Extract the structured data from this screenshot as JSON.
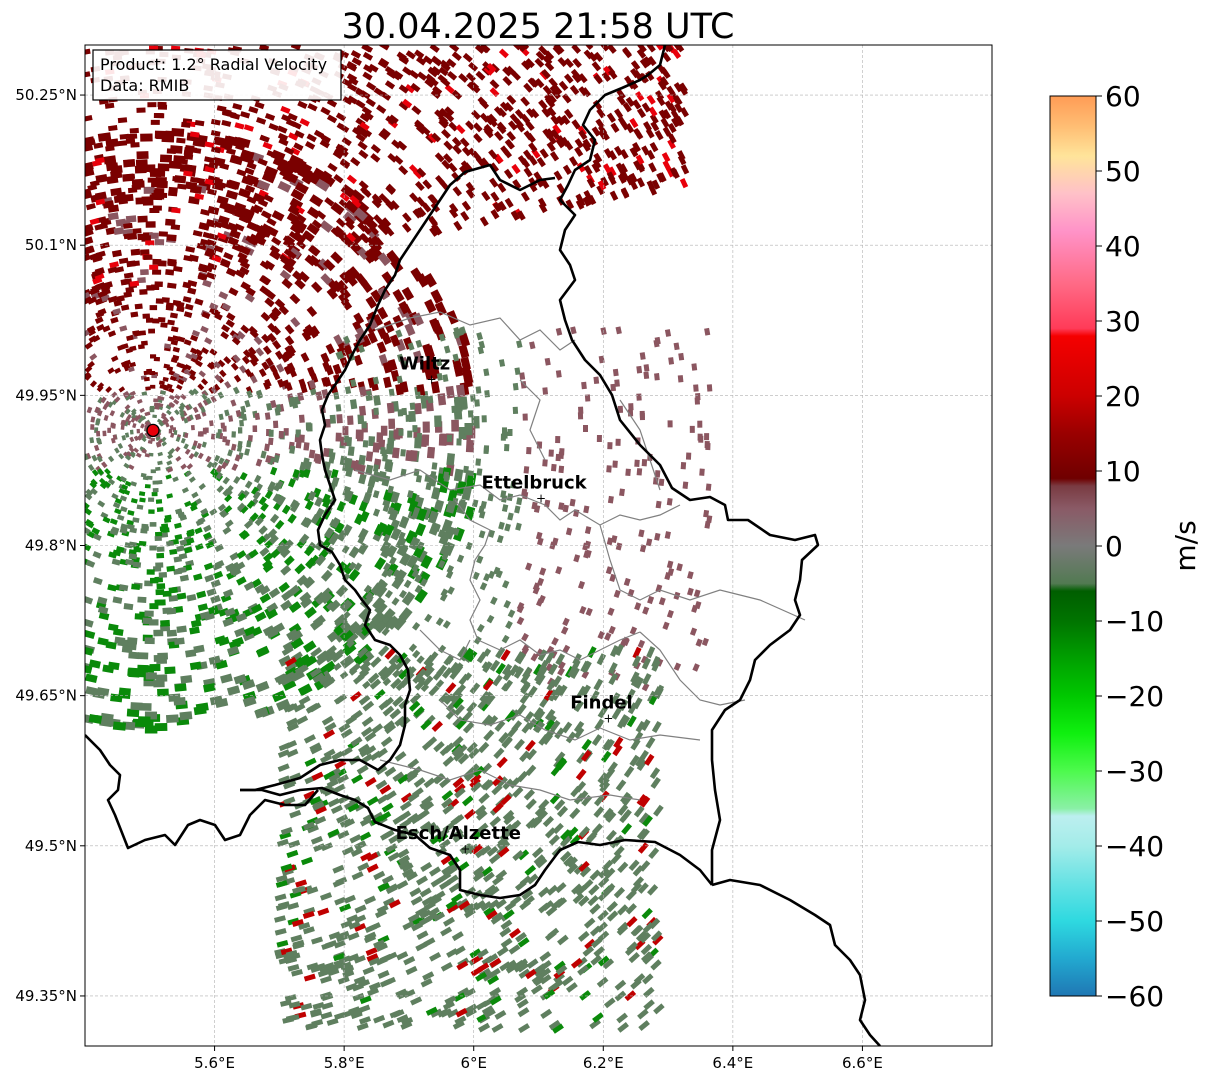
{
  "title": "30.04.2025 21:58 UTC",
  "info_box": {
    "line1": "Product: 1.2° Radial Velocity",
    "line2": "Data: RMIB"
  },
  "axes": {
    "lon_range": [
      5.4,
      6.8
    ],
    "lat_range": [
      49.3,
      50.3
    ],
    "x_ticks": [
      {
        "value": 5.6,
        "label": "5.6°E"
      },
      {
        "value": 5.8,
        "label": "5.8°E"
      },
      {
        "value": 6.0,
        "label": "6°E"
      },
      {
        "value": 6.2,
        "label": "6.2°E"
      },
      {
        "value": 6.4,
        "label": "6.4°E"
      },
      {
        "value": 6.6,
        "label": "6.6°E"
      }
    ],
    "y_ticks": [
      {
        "value": 50.25,
        "label": "50.25°N"
      },
      {
        "value": 50.1,
        "label": "50.1°N"
      },
      {
        "value": 49.95,
        "label": "49.95°N"
      },
      {
        "value": 49.8,
        "label": "49.8°N"
      },
      {
        "value": 49.65,
        "label": "49.65°N"
      },
      {
        "value": 49.5,
        "label": "49.5°N"
      },
      {
        "value": 49.35,
        "label": "49.35°N"
      }
    ],
    "grid": true
  },
  "radar_site": {
    "lon": 5.505,
    "lat": 49.915,
    "color": "#e8000b"
  },
  "cities": [
    {
      "name": "Wiltz",
      "lon": 5.935,
      "lat": 49.967
    },
    {
      "name": "Ettelbruck",
      "lon": 6.104,
      "lat": 49.848
    },
    {
      "name": "Findel",
      "lon": 6.208,
      "lat": 49.628
    },
    {
      "name": "Esch/Alzette",
      "lon": 5.987,
      "lat": 49.498
    }
  ],
  "colorbar": {
    "label": "m/s",
    "vmin": -60,
    "vmax": 60,
    "ticks": [
      {
        "value": 60,
        "label": "60"
      },
      {
        "value": 50,
        "label": "50"
      },
      {
        "value": 40,
        "label": "40"
      },
      {
        "value": 30,
        "label": "30"
      },
      {
        "value": 20,
        "label": "20"
      },
      {
        "value": 10,
        "label": "10"
      },
      {
        "value": 0,
        "label": "0"
      },
      {
        "value": -10,
        "label": "−10"
      },
      {
        "value": -20,
        "label": "−20"
      },
      {
        "value": -30,
        "label": "−30"
      },
      {
        "value": -40,
        "label": "−40"
      },
      {
        "value": -50,
        "label": "−50"
      },
      {
        "value": -60,
        "label": "−60"
      }
    ],
    "stops": [
      {
        "value": -60,
        "color": "#1f77b4"
      },
      {
        "value": -55,
        "color": "#22a9d0"
      },
      {
        "value": -50,
        "color": "#2ed9e0"
      },
      {
        "value": -45,
        "color": "#66e2e4"
      },
      {
        "value": -40,
        "color": "#a3ece9"
      },
      {
        "value": -36,
        "color": "#bcefef"
      },
      {
        "value": -35,
        "color": "#8af0a6"
      },
      {
        "value": -30,
        "color": "#4dfa4d"
      },
      {
        "value": -25,
        "color": "#0ff00f"
      },
      {
        "value": -20,
        "color": "#00c800"
      },
      {
        "value": -15,
        "color": "#00a000"
      },
      {
        "value": -10,
        "color": "#007400"
      },
      {
        "value": -6,
        "color": "#005e00"
      },
      {
        "value": -5,
        "color": "#527a52"
      },
      {
        "value": 0,
        "color": "#7a7a7a"
      },
      {
        "value": 5,
        "color": "#8a5a66"
      },
      {
        "value": 8,
        "color": "#7a3b42"
      },
      {
        "value": 9,
        "color": "#6f0000"
      },
      {
        "value": 15,
        "color": "#9a0000"
      },
      {
        "value": 20,
        "color": "#cc0000"
      },
      {
        "value": 28,
        "color": "#f50000"
      },
      {
        "value": 29,
        "color": "#ff3b58"
      },
      {
        "value": 35,
        "color": "#ff6a86"
      },
      {
        "value": 42,
        "color": "#ff93c8"
      },
      {
        "value": 47,
        "color": "#ffc1c8"
      },
      {
        "value": 52,
        "color": "#ffe49a"
      },
      {
        "value": 56,
        "color": "#ffbd73"
      },
      {
        "value": 60,
        "color": "#ff9c55"
      }
    ]
  },
  "colors": {
    "outgoing_strong": "#7a0000",
    "outgoing_weak": "#8b5660",
    "incoming_weak": "#5f7f5f",
    "incoming_strong": "#0a8a0a",
    "border": "#000000",
    "canton": "#808080"
  }
}
